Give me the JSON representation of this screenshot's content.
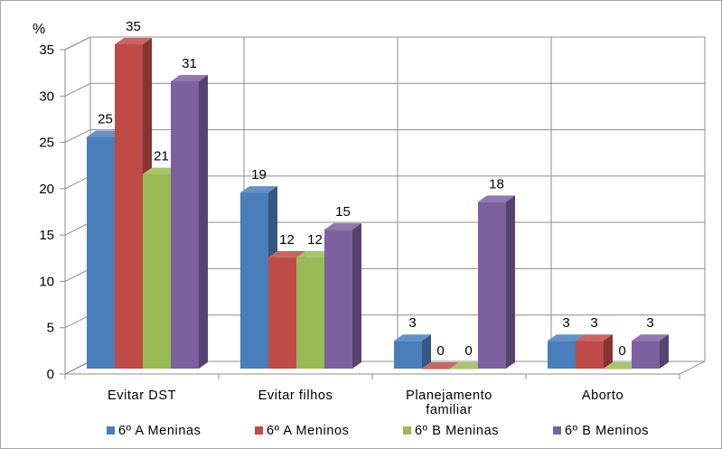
{
  "chart_data": {
    "type": "bar",
    "ylabel": "%",
    "ylim": [
      0,
      35
    ],
    "yticks": [
      0,
      5,
      10,
      15,
      20,
      25,
      30,
      35
    ],
    "categories": [
      "Evitar DST",
      "Evitar filhos",
      "Planejamento familiar",
      "Aborto"
    ],
    "series": [
      {
        "name": "6º A Meninas",
        "values": [
          25,
          19,
          3,
          3
        ],
        "color": "#4a7ebb"
      },
      {
        "name": "6º A Meninos",
        "values": [
          35,
          12,
          0,
          3
        ],
        "color": "#be4b48"
      },
      {
        "name": "6º B Meninas",
        "values": [
          21,
          12,
          0,
          0
        ],
        "color": "#98b954"
      },
      {
        "name": "6º B Meninos",
        "values": [
          31,
          15,
          18,
          3
        ],
        "color": "#7d60a0"
      }
    ],
    "grid": true,
    "style": "3d-clustered",
    "legend": "bottom"
  }
}
